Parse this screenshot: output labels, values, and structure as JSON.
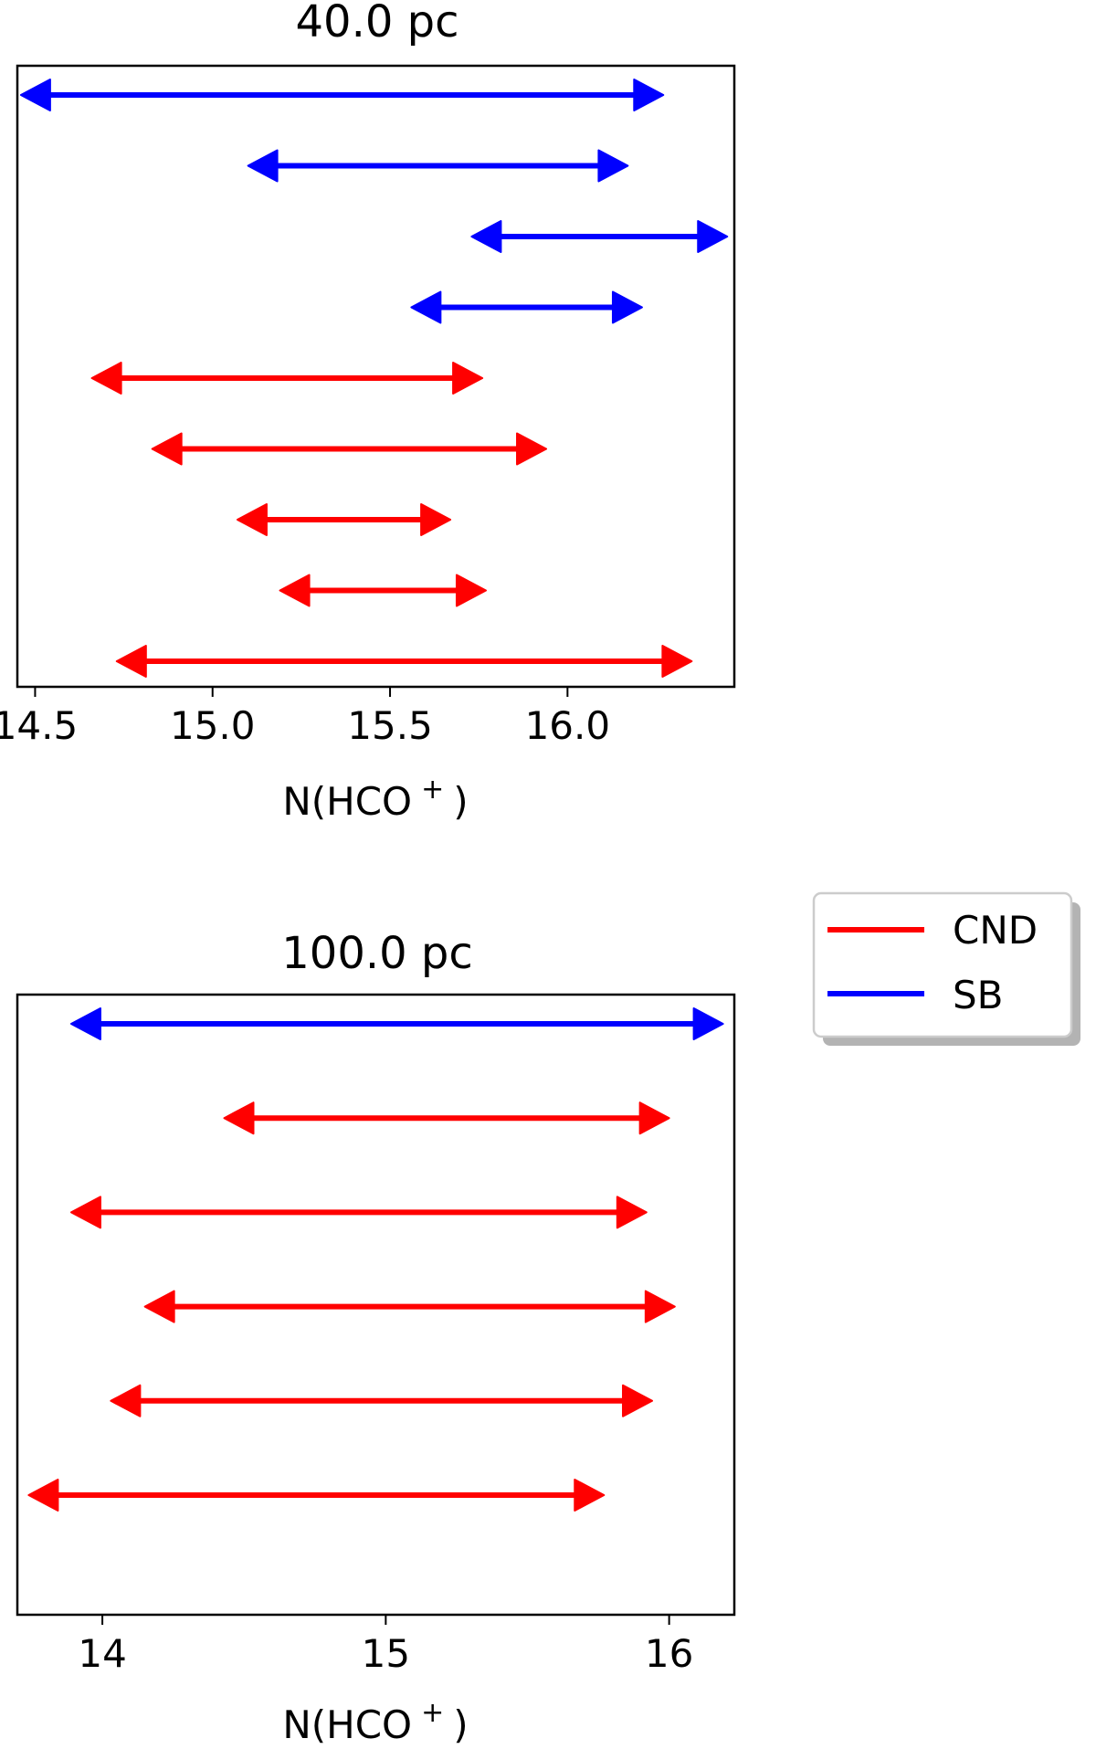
{
  "chart_data": [
    {
      "type": "range",
      "title": "40.0 pc",
      "xlabel": "N(HCO",
      "xlabel_sup": "+",
      "xlabel_close": ")",
      "xlim": [
        14.45,
        16.47
      ],
      "xticks": [
        14.5,
        15.0,
        15.5,
        16.0
      ],
      "xtick_labels": [
        "14.5",
        "15.0",
        "15.5",
        "16.0"
      ],
      "grid": false,
      "ranges": [
        {
          "series": "SB",
          "low": 14.46,
          "high": 16.27
        },
        {
          "series": "SB",
          "low": 15.1,
          "high": 16.17
        },
        {
          "series": "SB",
          "low": 15.73,
          "high": 16.45
        },
        {
          "series": "SB",
          "low": 15.56,
          "high": 16.21
        },
        {
          "series": "CND",
          "low": 14.66,
          "high": 15.76
        },
        {
          "series": "CND",
          "low": 14.83,
          "high": 15.94
        },
        {
          "series": "CND",
          "low": 15.07,
          "high": 15.67
        },
        {
          "series": "CND",
          "low": 15.19,
          "high": 15.77
        },
        {
          "series": "CND",
          "low": 14.73,
          "high": 16.35
        }
      ]
    },
    {
      "type": "range",
      "title": "100.0 pc",
      "xlabel": "N(HCO",
      "xlabel_sup": "+",
      "xlabel_close": ")",
      "xlim": [
        13.7,
        16.23
      ],
      "xticks": [
        14,
        15,
        16
      ],
      "xtick_labels": [
        "14",
        "15",
        "16"
      ],
      "grid": false,
      "ranges": [
        {
          "series": "SB",
          "low": 13.89,
          "high": 16.19
        },
        {
          "series": "CND",
          "low": 14.43,
          "high": 16.0
        },
        {
          "series": "CND",
          "low": 13.89,
          "high": 15.92
        },
        {
          "series": "CND",
          "low": 14.15,
          "high": 16.02
        },
        {
          "series": "CND",
          "low": 14.03,
          "high": 15.94
        },
        {
          "series": "CND",
          "low": 13.74,
          "high": 15.77
        }
      ]
    }
  ],
  "legend": {
    "placement": "right, beside lower panel",
    "items": [
      {
        "name": "CND",
        "color": "#ff0000"
      },
      {
        "name": "SB",
        "color": "#0000ff"
      }
    ]
  },
  "colors": {
    "CND": "#ff0000",
    "SB": "#0000ff",
    "axes": "#000000"
  }
}
